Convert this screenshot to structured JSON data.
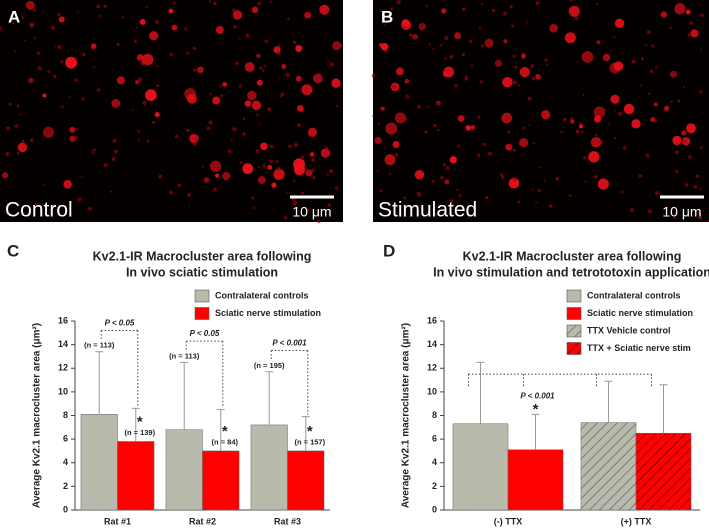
{
  "images": [
    {
      "letter": "A",
      "label": "Control",
      "scale_bar": "10 μm"
    },
    {
      "letter": "B",
      "label": "Stimulated",
      "scale_bar": "10 μm"
    }
  ],
  "chart_data": [
    {
      "type": "bar",
      "panel": "C",
      "title": [
        "Kv2.1-IR Macrocluster area following",
        "In vivo sciatic stimulation"
      ],
      "ylabel": "Average Kv2.1 macrocluster area (μm²)",
      "categories": [
        "Rat #1",
        "Rat #2",
        "Rat #3"
      ],
      "series": [
        {
          "name": "Contralateral controls",
          "color": "#b8baab",
          "values": [
            8.1,
            6.8,
            7.2
          ],
          "errors": [
            5.3,
            5.7,
            4.5
          ],
          "n_labels": [
            "(n = 113)",
            "(n = 113)",
            "(n = 195)"
          ]
        },
        {
          "name": "Sciatic nerve stimulation",
          "color": "#ff0000",
          "values": [
            5.8,
            5.0,
            5.0
          ],
          "errors": [
            2.8,
            3.5,
            2.9
          ],
          "n_labels": [
            "(n = 139)",
            "(n = 84)",
            "(n = 157)"
          ]
        }
      ],
      "significance": [
        {
          "label": "P < 0.05",
          "marker": "*"
        },
        {
          "label": "P < 0.05",
          "marker": "*"
        },
        {
          "label": "P < 0.001",
          "marker": "*"
        }
      ],
      "ylim": [
        0,
        16
      ],
      "yticks": [
        0,
        2,
        4,
        6,
        8,
        10,
        12,
        14,
        16
      ]
    },
    {
      "type": "bar",
      "panel": "D",
      "title": [
        "Kv2.1-IR Macrocluster area following",
        "In vivo stimulation and tetrototoxin application"
      ],
      "ylabel": "Average Kv2.1 macrocluster area (μm²)",
      "categories": [
        "(-) TTX",
        "(+) TTX"
      ],
      "series": [
        {
          "name": "Contralateral controls",
          "color": "#b8baab",
          "values": [
            7.3,
            null
          ],
          "errors": [
            5.2,
            null
          ]
        },
        {
          "name": "Sciatic nerve stimulation",
          "color": "#ff0000",
          "values": [
            5.1,
            null
          ],
          "errors": [
            3.0,
            null
          ]
        },
        {
          "name": "TTX Vehicle control",
          "color": "#b8baab",
          "hatch": true,
          "values": [
            null,
            7.4
          ],
          "errors": [
            null,
            3.5
          ]
        },
        {
          "name": "TTX + Sciatic nerve stim",
          "color": "#ff0000",
          "hatch": true,
          "values": [
            null,
            6.5
          ],
          "errors": [
            null,
            4.1
          ]
        }
      ],
      "significance": [
        {
          "label": "P < 0.001",
          "marker": "*"
        }
      ],
      "ylim": [
        0,
        16
      ],
      "yticks": [
        0,
        2,
        4,
        6,
        8,
        10,
        12,
        14,
        16
      ]
    }
  ]
}
